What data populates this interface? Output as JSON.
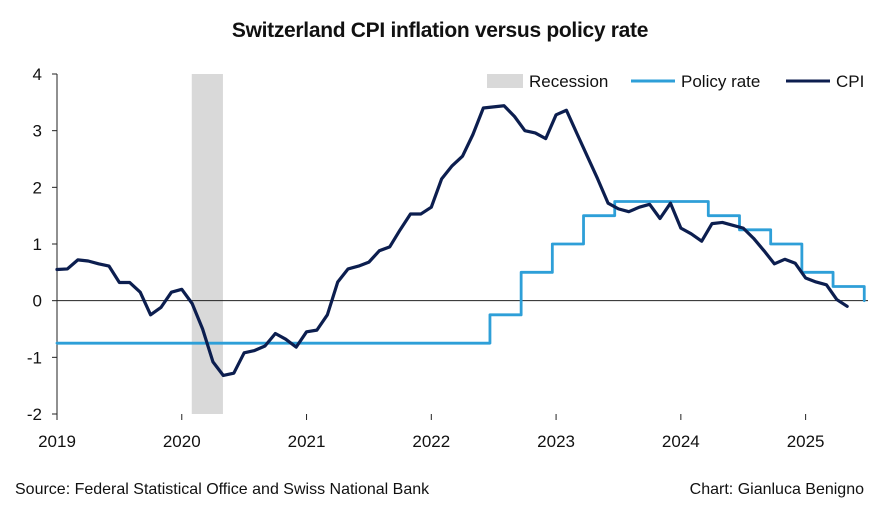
{
  "chart_data": {
    "type": "line",
    "title": "Switzerland CPI inflation versus policy rate",
    "xlabel": "",
    "ylabel": "",
    "xlim": [
      2019.0,
      2025.5
    ],
    "ylim": [
      -2,
      4
    ],
    "yticks": [
      -2,
      -1,
      0,
      1,
      2,
      3,
      4
    ],
    "xticks": [
      2019,
      2020,
      2021,
      2022,
      2023,
      2024,
      2025
    ],
    "grid": false,
    "legend": "top-right",
    "recession": {
      "name": "Recession",
      "start": 2020.08,
      "end": 2020.33,
      "color": "#d9d9d9"
    },
    "series": [
      {
        "name": "Policy rate",
        "color": "#2e9fd8",
        "step": true,
        "points": [
          [
            2019.0,
            -0.75
          ],
          [
            2022.47,
            -0.75
          ],
          [
            2022.47,
            -0.25
          ],
          [
            2022.72,
            -0.25
          ],
          [
            2022.72,
            0.5
          ],
          [
            2022.97,
            0.5
          ],
          [
            2022.97,
            1.0
          ],
          [
            2023.22,
            1.0
          ],
          [
            2023.22,
            1.5
          ],
          [
            2023.47,
            1.5
          ],
          [
            2023.47,
            1.75
          ],
          [
            2024.22,
            1.75
          ],
          [
            2024.22,
            1.5
          ],
          [
            2024.47,
            1.5
          ],
          [
            2024.47,
            1.25
          ],
          [
            2024.72,
            1.25
          ],
          [
            2024.72,
            1.0
          ],
          [
            2024.97,
            1.0
          ],
          [
            2024.97,
            0.5
          ],
          [
            2025.22,
            0.5
          ],
          [
            2025.22,
            0.25
          ],
          [
            2025.47,
            0.25
          ],
          [
            2025.47,
            0.0
          ]
        ]
      },
      {
        "name": "CPI",
        "color": "#0c1e4f",
        "step": false,
        "points": [
          [
            2019.0,
            0.55
          ],
          [
            2019.083,
            0.56
          ],
          [
            2019.167,
            0.72
          ],
          [
            2019.25,
            0.7
          ],
          [
            2019.333,
            0.65
          ],
          [
            2019.417,
            0.61
          ],
          [
            2019.5,
            0.32
          ],
          [
            2019.583,
            0.32
          ],
          [
            2019.667,
            0.15
          ],
          [
            2019.75,
            -0.25
          ],
          [
            2019.833,
            -0.12
          ],
          [
            2019.917,
            0.15
          ],
          [
            2020.0,
            0.2
          ],
          [
            2020.083,
            -0.05
          ],
          [
            2020.167,
            -0.5
          ],
          [
            2020.25,
            -1.08
          ],
          [
            2020.333,
            -1.32
          ],
          [
            2020.417,
            -1.28
          ],
          [
            2020.5,
            -0.92
          ],
          [
            2020.583,
            -0.88
          ],
          [
            2020.667,
            -0.8
          ],
          [
            2020.75,
            -0.58
          ],
          [
            2020.833,
            -0.68
          ],
          [
            2020.917,
            -0.82
          ],
          [
            2021.0,
            -0.55
          ],
          [
            2021.083,
            -0.52
          ],
          [
            2021.167,
            -0.25
          ],
          [
            2021.25,
            0.33
          ],
          [
            2021.333,
            0.56
          ],
          [
            2021.417,
            0.61
          ],
          [
            2021.5,
            0.68
          ],
          [
            2021.583,
            0.88
          ],
          [
            2021.667,
            0.95
          ],
          [
            2021.75,
            1.25
          ],
          [
            2021.833,
            1.53
          ],
          [
            2021.917,
            1.53
          ],
          [
            2022.0,
            1.65
          ],
          [
            2022.083,
            2.15
          ],
          [
            2022.167,
            2.38
          ],
          [
            2022.25,
            2.55
          ],
          [
            2022.333,
            2.93
          ],
          [
            2022.417,
            3.4
          ],
          [
            2022.5,
            3.42
          ],
          [
            2022.583,
            3.44
          ],
          [
            2022.667,
            3.25
          ],
          [
            2022.75,
            3.0
          ],
          [
            2022.833,
            2.96
          ],
          [
            2022.917,
            2.86
          ],
          [
            2023.0,
            3.28
          ],
          [
            2023.083,
            3.36
          ],
          [
            2023.167,
            2.95
          ],
          [
            2023.25,
            2.55
          ],
          [
            2023.333,
            2.15
          ],
          [
            2023.417,
            1.72
          ],
          [
            2023.5,
            1.62
          ],
          [
            2023.583,
            1.57
          ],
          [
            2023.667,
            1.65
          ],
          [
            2023.75,
            1.7
          ],
          [
            2023.833,
            1.45
          ],
          [
            2023.917,
            1.72
          ],
          [
            2024.0,
            1.28
          ],
          [
            2024.083,
            1.18
          ],
          [
            2024.167,
            1.05
          ],
          [
            2024.25,
            1.36
          ],
          [
            2024.333,
            1.38
          ],
          [
            2024.417,
            1.33
          ],
          [
            2024.5,
            1.28
          ],
          [
            2024.583,
            1.1
          ],
          [
            2024.667,
            0.88
          ],
          [
            2024.75,
            0.65
          ],
          [
            2024.833,
            0.73
          ],
          [
            2024.917,
            0.66
          ],
          [
            2025.0,
            0.4
          ],
          [
            2025.083,
            0.33
          ],
          [
            2025.167,
            0.28
          ],
          [
            2025.25,
            0.02
          ],
          [
            2025.333,
            -0.1
          ]
        ]
      }
    ]
  },
  "footer": {
    "source": "Source: Federal Statistical Office and Swiss National Bank",
    "credit": "Chart: Gianluca Benigno"
  }
}
